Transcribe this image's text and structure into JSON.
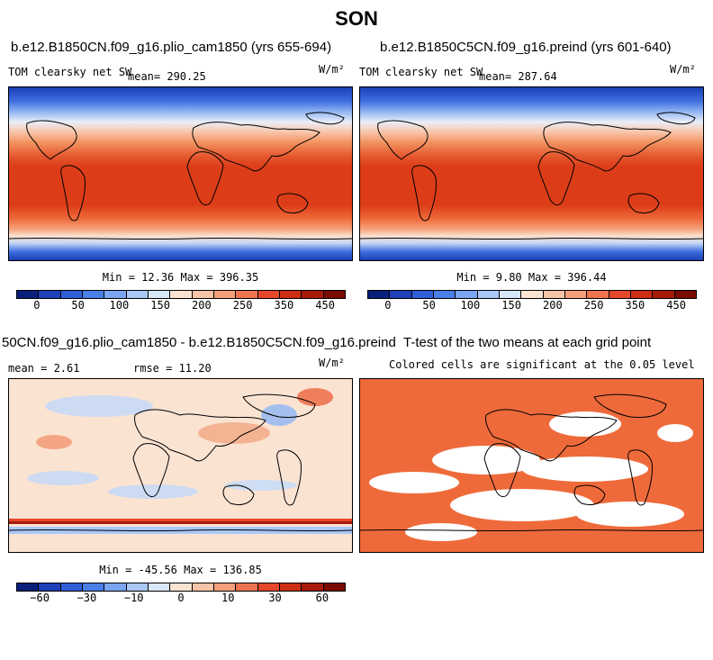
{
  "page_title": "SON",
  "panels": [
    {
      "title": "b.e12.B1850CN.f09_g16.plio_cam1850 (yrs 655-694)",
      "variable": "TOM clearsky net SW",
      "mean_text": "mean= 290.25",
      "units": "W/m²",
      "minmax": "Min =  12.36 Max = 396.35"
    },
    {
      "title": "b.e12.B1850C5CN.f09_g16.preind (yrs 601-640)",
      "variable": "TOM clearsky net SW",
      "mean_text": "mean= 287.64",
      "units": "W/m²",
      "minmax": "Min =   9.80 Max = 396.44"
    },
    {
      "title": "50CN.f09_g16.plio_cam1850 - b.e12.B1850C5CN.f09_g16.preind",
      "mean_text": "mean =   2.61",
      "rmse_text": "rmse =  11.20",
      "units": "W/m²",
      "minmax": "Min = -45.56 Max = 136.85"
    },
    {
      "title": "T-test of the two means at each grid point",
      "subtitle": "Colored cells are significant at the 0.05 level"
    }
  ],
  "colorbar_abs": {
    "colors": [
      "#08207a",
      "#1e40b8",
      "#2f5fd8",
      "#4a7fe8",
      "#7aa5f0",
      "#aac8f5",
      "#d8e8fa",
      "#fbe3d2",
      "#f8c4a8",
      "#f4a07c",
      "#ee7450",
      "#e5472b",
      "#cc2d14",
      "#a81a0a",
      "#7a0a04"
    ],
    "ticks": [
      "0",
      "50",
      "100",
      "150",
      "200",
      "250",
      "350",
      "450"
    ]
  },
  "colorbar_diff": {
    "colors": [
      "#08207a",
      "#1e40b8",
      "#2f5fd8",
      "#4a7fe8",
      "#7aa5f0",
      "#aac8f5",
      "#d8e8fa",
      "#fbe3d2",
      "#f8c4a8",
      "#f4a07c",
      "#ee7450",
      "#e5472b",
      "#cc2d14",
      "#a81a0a",
      "#7a0a04"
    ],
    "ticks": [
      "−60",
      "−30",
      "−10",
      "0",
      "10",
      "30",
      "60"
    ]
  },
  "ttest_color": "#ef6a3a"
}
